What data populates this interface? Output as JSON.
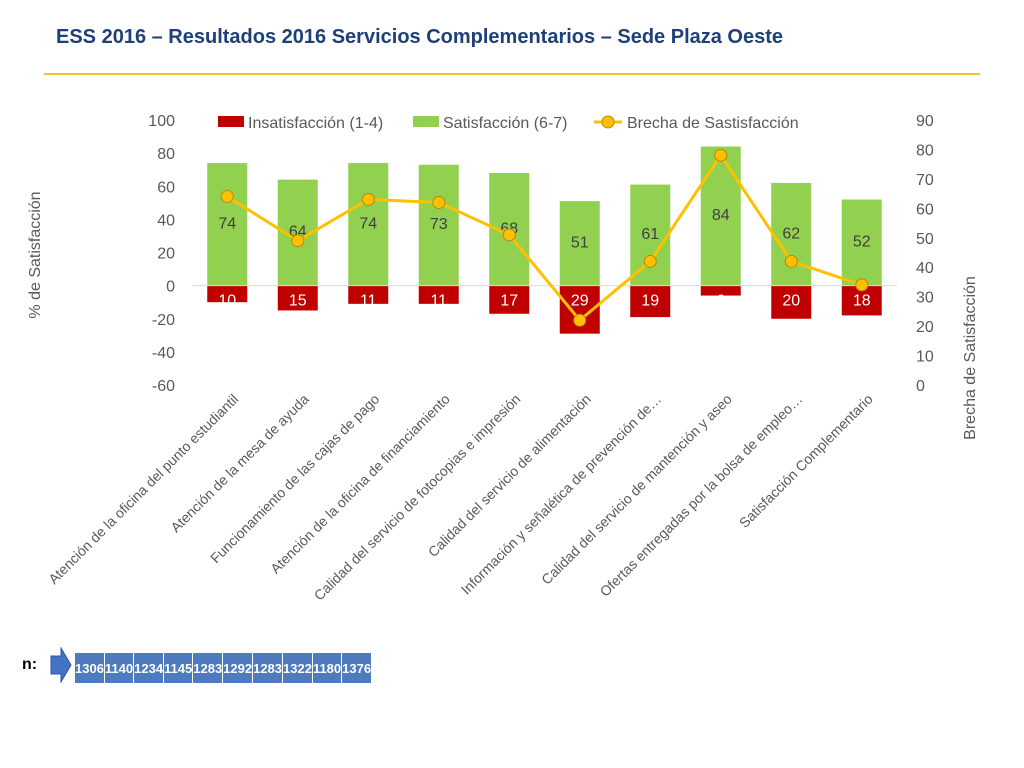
{
  "title": "ESS 2016 – Resultados 2016 Servicios Complementarios – Sede Plaza Oeste",
  "colors": {
    "insatisfaccion": "#c00000",
    "satisfaccion": "#92d050",
    "brecha": "#ffc000",
    "title": "#1f3f78",
    "rule": "#f2c12e",
    "n_cell": "#4e7bbd"
  },
  "chart_data": {
    "type": "bar",
    "categories": [
      "Atención de la oficina del punto estudiantil",
      "Atención de la mesa de ayuda",
      "Funcionamiento de las cajas de pago",
      "Atención de la oficina de financiamiento",
      "Calidad del servicio de fotocopias e impresión",
      "Calidad del servicio de alimentación",
      "Información y señalética de prevención de…",
      "Calidad del servicio de mantención y aseo",
      "Ofertas entregadas por la bolsa de empleo…",
      "Satisfacción Complementario"
    ],
    "series": [
      {
        "name": "Insatisfacción (1-4)",
        "type": "bar",
        "axis": "left",
        "values": [
          -10,
          -15,
          -11,
          -11,
          -17,
          -29,
          -19,
          -6,
          -20,
          -18
        ],
        "labels": [
          "10",
          "15",
          "11",
          "11",
          "17",
          "29",
          "19",
          "6",
          "20",
          "18"
        ]
      },
      {
        "name": "Satisfacción (6-7)",
        "type": "bar",
        "axis": "left",
        "values": [
          74,
          64,
          74,
          73,
          68,
          51,
          61,
          84,
          62,
          52
        ],
        "labels": [
          "74",
          "64",
          "74",
          "73",
          "68",
          "51",
          "61",
          "84",
          "62",
          "52"
        ]
      },
      {
        "name": "Brecha de Sastisfacción",
        "type": "line",
        "axis": "right",
        "values": [
          64,
          49,
          63,
          62,
          51,
          22,
          42,
          78,
          42,
          34
        ]
      }
    ],
    "ylabel": "% de Satisfacción",
    "y2label": "Brecha de Satisfacción",
    "ylim": [
      -60,
      100
    ],
    "yticks": [
      "100",
      "80",
      "60",
      "40",
      "20",
      "0",
      "-20",
      "-40",
      "-60"
    ],
    "y2lim": [
      0,
      90
    ],
    "y2ticks": [
      "90",
      "80",
      "70",
      "60",
      "50",
      "40",
      "30",
      "20",
      "10",
      "0"
    ],
    "legend": "top"
  },
  "n_row": {
    "label": "n:",
    "values": [
      "1306",
      "1140",
      "1234",
      "1145",
      "1283",
      "1292",
      "1283",
      "1322",
      "1180",
      "1376"
    ]
  }
}
